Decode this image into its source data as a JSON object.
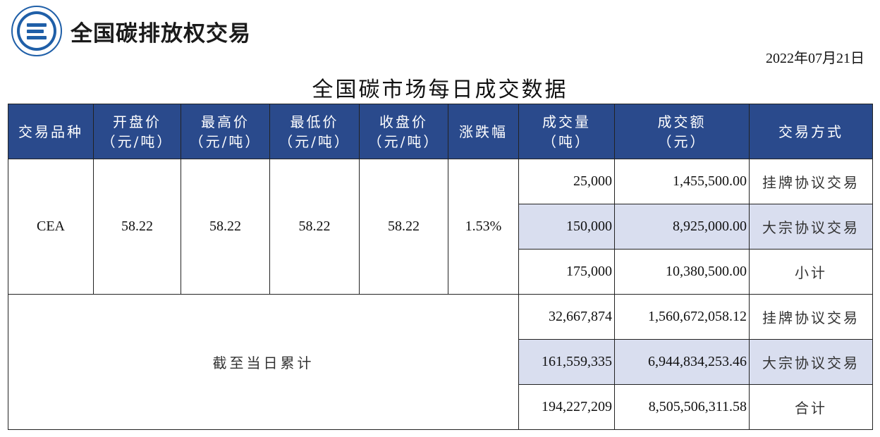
{
  "header": {
    "brand": "全国碳排放权交易",
    "date": "2022年07月21日",
    "title": "全国碳市场每日成交数据"
  },
  "colors": {
    "header_bg": "#2a4a8c",
    "highlight": "#d9deef",
    "logo_blue": "#1f5fa8"
  },
  "columns": [
    {
      "line1": "交易品种",
      "line2": ""
    },
    {
      "line1": "开盘价",
      "line2": "（元/吨）"
    },
    {
      "line1": "最高价",
      "line2": "（元/吨）"
    },
    {
      "line1": "最低价",
      "line2": "（元/吨）"
    },
    {
      "line1": "收盘价",
      "line2": "（元/吨）"
    },
    {
      "line1": "涨跌幅",
      "line2": ""
    },
    {
      "line1": "成交量",
      "line2": "（吨）"
    },
    {
      "line1": "成交额",
      "line2": "（元）"
    },
    {
      "line1": "交易方式",
      "line2": ""
    }
  ],
  "daily": {
    "product": "CEA",
    "open": "58.22",
    "high": "58.22",
    "low": "58.22",
    "close": "58.22",
    "change": "1.53%",
    "rows": [
      {
        "volume": "25,000",
        "amount": "1,455,500.00",
        "mode": "挂牌协议交易"
      },
      {
        "volume": "150,000",
        "amount": "8,925,000.00",
        "mode": "大宗协议交易"
      },
      {
        "volume": "175,000",
        "amount": "10,380,500.00",
        "mode": "小计"
      }
    ]
  },
  "cumulative": {
    "label": "截至当日累计",
    "rows": [
      {
        "volume": "32,667,874",
        "amount": "1,560,672,058.12",
        "mode": "挂牌协议交易"
      },
      {
        "volume": "161,559,335",
        "amount": "6,944,834,253.46",
        "mode": "大宗协议交易"
      },
      {
        "volume": "194,227,209",
        "amount": "8,505,506,311.58",
        "mode": "合计"
      }
    ]
  }
}
